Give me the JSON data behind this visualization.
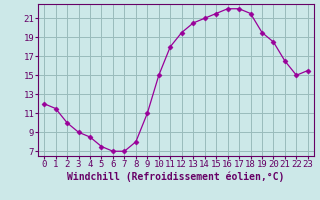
{
  "hours": [
    0,
    1,
    2,
    3,
    4,
    5,
    6,
    7,
    8,
    9,
    10,
    11,
    12,
    13,
    14,
    15,
    16,
    17,
    18,
    19,
    20,
    21,
    22,
    23
  ],
  "values": [
    12.0,
    11.5,
    10.0,
    9.0,
    8.5,
    7.5,
    7.0,
    7.0,
    8.0,
    11.0,
    15.0,
    18.0,
    19.5,
    20.5,
    21.0,
    21.5,
    22.0,
    22.0,
    21.5,
    19.5,
    18.5,
    16.5,
    15.0,
    15.5
  ],
  "line_color": "#990099",
  "marker": "D",
  "marker_size": 2.5,
  "bg_color": "#cce8e8",
  "grid_color": "#99bbbb",
  "xlabel": "Windchill (Refroidissement éolien,°C)",
  "xlim": [
    -0.5,
    23.5
  ],
  "ylim": [
    6.5,
    22.5
  ],
  "yticks": [
    7,
    9,
    11,
    13,
    15,
    17,
    19,
    21
  ],
  "xticks": [
    0,
    1,
    2,
    3,
    4,
    5,
    6,
    7,
    8,
    9,
    10,
    11,
    12,
    13,
    14,
    15,
    16,
    17,
    18,
    19,
    20,
    21,
    22,
    23
  ],
  "tick_fontsize": 6.5,
  "xlabel_fontsize": 7,
  "spine_color": "#660066",
  "text_color": "#660066"
}
